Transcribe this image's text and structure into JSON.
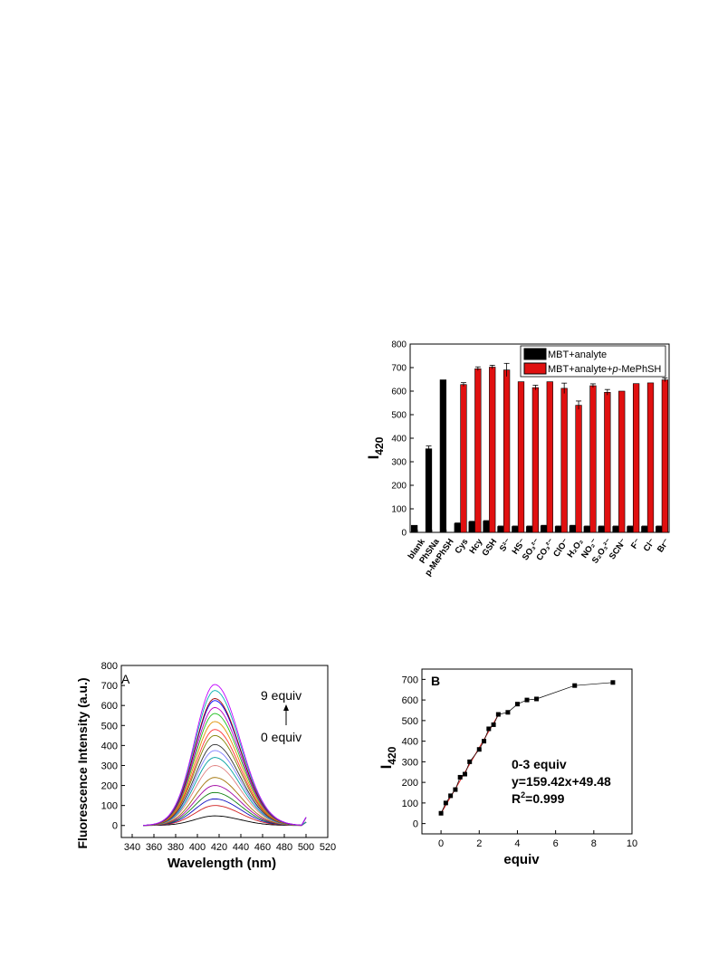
{
  "chart_data": [
    {
      "id": "selectivity",
      "type": "bar",
      "ylabel": "I",
      "ylabel_sub": "420",
      "ylim": [
        0,
        800
      ],
      "yticks": [
        0,
        100,
        200,
        300,
        400,
        500,
        600,
        700,
        800
      ],
      "legend_position": "top-right",
      "categories": [
        "blank",
        "PhSNa",
        "p-MePhSH",
        "Cys",
        "Hcy",
        "GSH",
        "S²⁻",
        "HS⁻",
        "SO₃²⁻",
        "CO₃²⁻",
        "ClO⁻",
        "H₂O₂",
        "NO₂⁻",
        "S₂O₃²⁻",
        "SCN⁻",
        "F⁻",
        "Cl⁻",
        "Br⁻"
      ],
      "series": [
        {
          "name": "MBT+analyte",
          "color": "#000000",
          "values": [
            30,
            355,
            648,
            38,
            45,
            48,
            25,
            25,
            25,
            28,
            25,
            28,
            25,
            25,
            25,
            25,
            25,
            25
          ],
          "errors": [
            0,
            12,
            0,
            2,
            2,
            2,
            2,
            2,
            2,
            2,
            2,
            2,
            2,
            2,
            2,
            2,
            2,
            2
          ]
        },
        {
          "name": "MBT+analyte+p-MePhSH",
          "name_prefix": "MBT+analyte+",
          "name_italic": "p",
          "name_suffix": "-MePhSH",
          "color": "#e01010",
          "values": [
            null,
            null,
            null,
            628,
            695,
            702,
            690,
            640,
            615,
            640,
            612,
            540,
            623,
            595,
            600,
            632,
            635,
            648
          ],
          "errors": [
            0,
            0,
            0,
            8,
            8,
            8,
            28,
            0,
            10,
            0,
            22,
            18,
            8,
            12,
            0,
            0,
            0,
            8
          ]
        }
      ]
    },
    {
      "id": "spectra",
      "type": "line",
      "panel_label": "A",
      "xlabel": "Wavelength (nm)",
      "ylabel": "Fluorescence Intensity (a.u.)",
      "xlim": [
        330,
        520
      ],
      "ylim": [
        -60,
        800
      ],
      "xticks": [
        340,
        360,
        380,
        400,
        420,
        440,
        460,
        480,
        500,
        520
      ],
      "yticks": [
        0,
        100,
        200,
        300,
        400,
        500,
        600,
        700,
        800
      ],
      "annotation_top": "9 equiv",
      "annotation_bottom": "0 equiv",
      "peak_x": 416,
      "x_range": [
        350,
        500
      ],
      "series_peaks": [
        48,
        100,
        133,
        165,
        200,
        240,
        300,
        340,
        375,
        405,
        450,
        480,
        520,
        560,
        590,
        625,
        635,
        675,
        705
      ],
      "series_colors": [
        "#000000",
        "#d02020",
        "#1010c0",
        "#108010",
        "#a000a0",
        "#a07000",
        "#e08080",
        "#00a0a0",
        "#8080ff",
        "#303030",
        "#808000",
        "#ff3030",
        "#e09000",
        "#20c020",
        "#c000c0",
        "#0000ff",
        "#a00000",
        "#00b0b0",
        "#c000ff"
      ]
    },
    {
      "id": "titration",
      "type": "scatter",
      "panel_label": "B",
      "xlabel": "equiv",
      "ylabel": "I",
      "ylabel_sub": "420",
      "xlim": [
        -1,
        10
      ],
      "ylim": [
        -50,
        750
      ],
      "xticks": [
        0,
        2,
        4,
        6,
        8,
        10
      ],
      "yticks": [
        0,
        100,
        200,
        300,
        400,
        500,
        600,
        700
      ],
      "x": [
        0,
        0.25,
        0.5,
        0.75,
        1.0,
        1.25,
        1.5,
        2.0,
        2.25,
        2.5,
        2.75,
        3.0,
        3.5,
        4.0,
        4.5,
        5.0,
        7.0,
        9.0
      ],
      "y": [
        50,
        100,
        135,
        165,
        225,
        240,
        300,
        360,
        400,
        460,
        480,
        530,
        540,
        580,
        600,
        605,
        670,
        685
      ],
      "fit": {
        "x": [
          0,
          3
        ],
        "slope": 159.42,
        "intercept": 49.48
      },
      "fit_range_label": "0-3 equiv",
      "equation": "y=159.42x+49.48",
      "r2_prefix": "R",
      "r2_sup": "2",
      "r2_value": "=0.999"
    }
  ]
}
